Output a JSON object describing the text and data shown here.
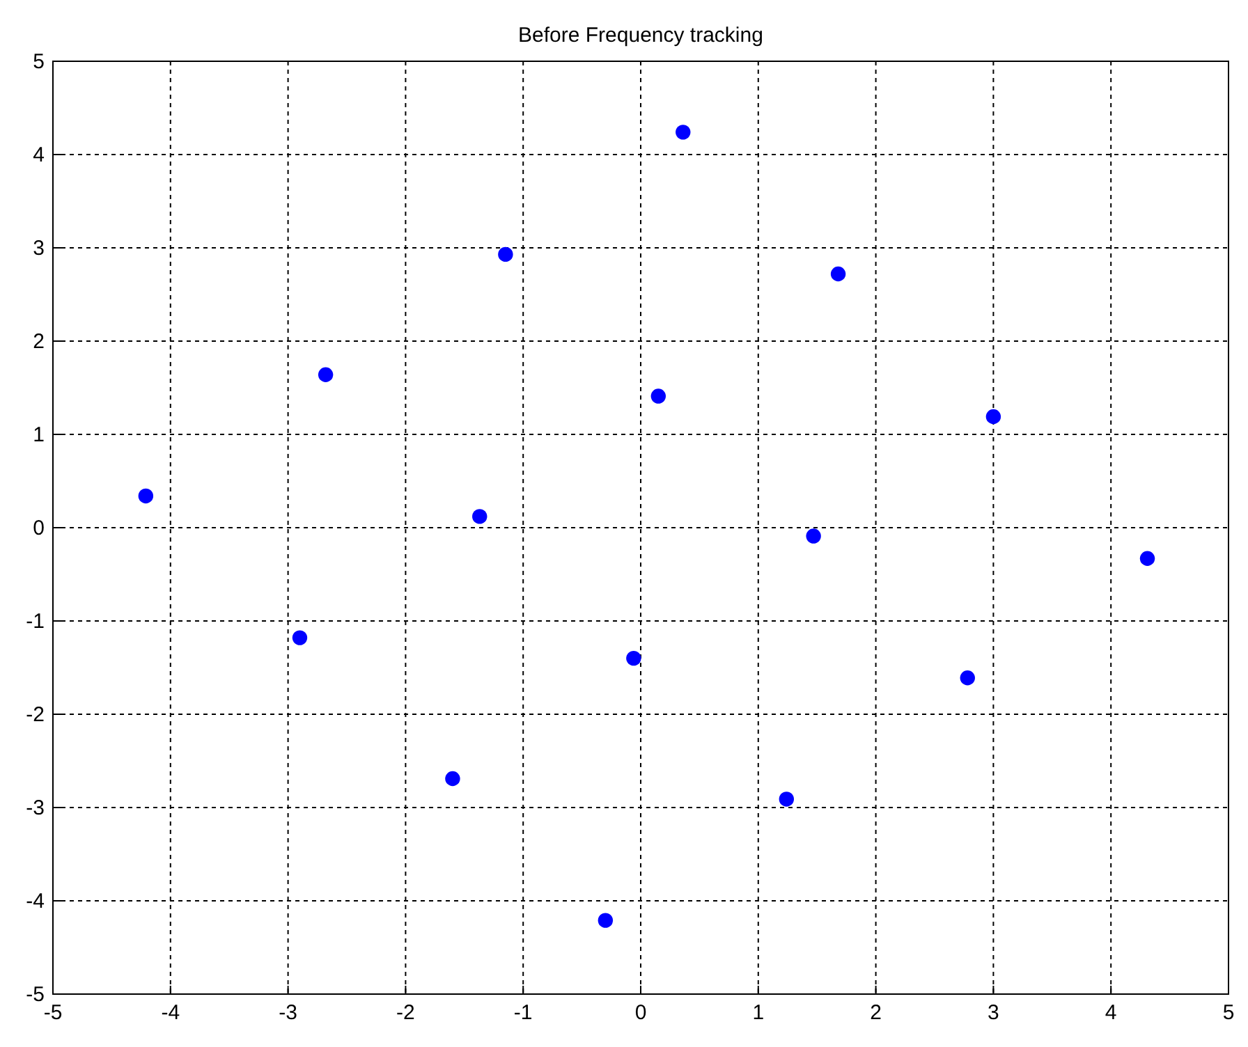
{
  "chart_data": {
    "type": "scatter",
    "title": "Before Frequency tracking",
    "x": [
      0.36,
      -1.15,
      1.68,
      -2.68,
      0.15,
      3.0,
      -4.21,
      -1.37,
      1.47,
      4.31,
      -2.9,
      -0.06,
      2.78,
      -1.6,
      1.24,
      -0.3
    ],
    "series": [
      {
        "color": "#0000ff",
        "values": [
          4.24,
          2.93,
          2.72,
          1.64,
          1.41,
          1.19,
          0.34,
          0.12,
          -0.09,
          -0.33,
          -1.18,
          -1.4,
          -1.61,
          -2.69,
          -2.91,
          -4.21
        ]
      }
    ],
    "xlim": [
      -5,
      5
    ],
    "ylim": [
      -5,
      5
    ],
    "xticks": [
      -5,
      -4,
      -3,
      -2,
      -1,
      0,
      1,
      2,
      3,
      4,
      5
    ],
    "yticks": [
      -5,
      -4,
      -3,
      -2,
      -1,
      0,
      1,
      2,
      3,
      4,
      5
    ],
    "grid": true,
    "marker": "circle"
  }
}
